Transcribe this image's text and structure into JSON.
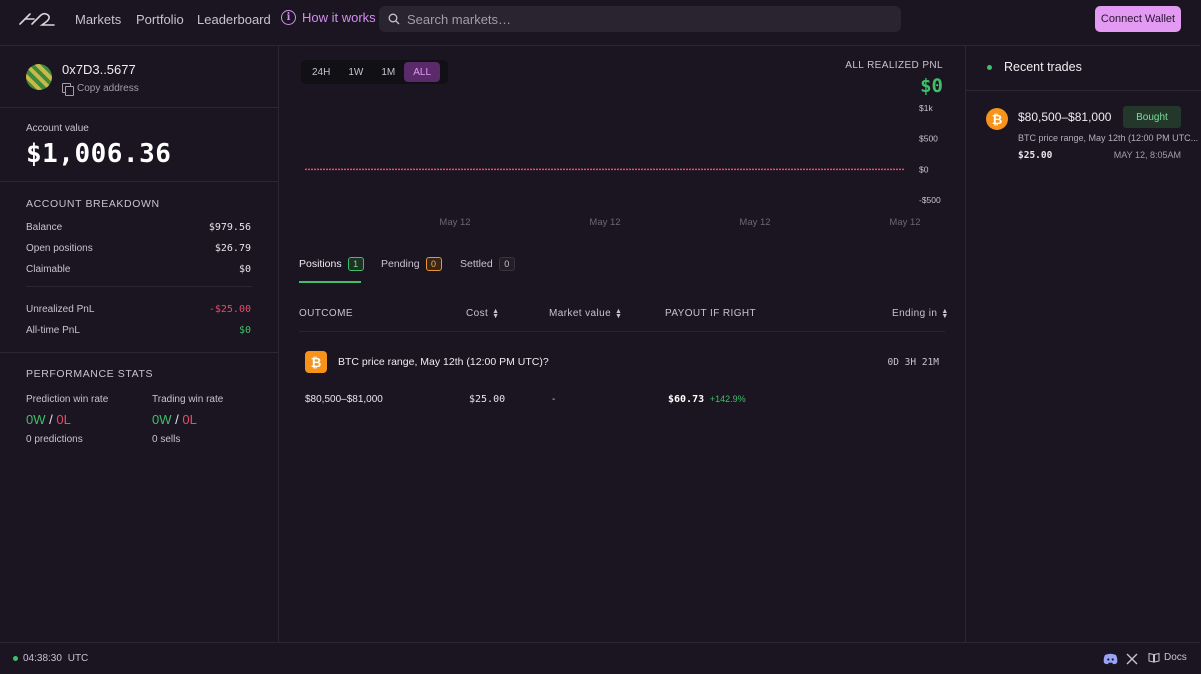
{
  "nav": {
    "links": [
      "Markets",
      "Portfolio",
      "Leaderboard"
    ],
    "how_it_works": "How it works",
    "search_placeholder": "Search markets…",
    "connect_wallet": "Connect Wallet"
  },
  "profile": {
    "address": "0x7D3..5677",
    "copy_label": "Copy address"
  },
  "account": {
    "label": "Account value",
    "value": "$1,006.36"
  },
  "breakdown": {
    "title": "ACCOUNT BREAKDOWN",
    "balance_label": "Balance",
    "balance_value": "$979.56",
    "open_label": "Open positions",
    "open_value": "$26.79",
    "claimable_label": "Claimable",
    "claimable_value": "$0",
    "unrealized_label": "Unrealized PnL",
    "unrealized_value": "-$25.00",
    "alltime_label": "All-time PnL",
    "alltime_value": "$0"
  },
  "performance": {
    "title": "PERFORMANCE STATS",
    "prediction_label": "Prediction win rate",
    "prediction_w": "0W",
    "prediction_sep": "/",
    "prediction_l": "0L",
    "prediction_sub": "0 predictions",
    "trading_label": "Trading win rate",
    "trading_w": "0W",
    "trading_sep": "/",
    "trading_l": "0L",
    "trading_sub": "0 sells"
  },
  "range_tabs": [
    "24H",
    "1W",
    "1M",
    "ALL"
  ],
  "range_active": "ALL",
  "pnl": {
    "label": "ALL REALIZED PNL",
    "value": "$0"
  },
  "chart_data": {
    "type": "line",
    "x": [
      "May 12",
      "May 12",
      "May 12",
      "May 12"
    ],
    "y_ticks": [
      "$1k",
      "$500",
      "$0",
      "-$500"
    ],
    "ylim": [
      -500,
      1000
    ],
    "series": [
      {
        "values": [
          0,
          0,
          0,
          0
        ]
      }
    ],
    "line_color": "#e94b6a",
    "grid": false
  },
  "positions_tabs": [
    {
      "label": "Positions",
      "count": "1"
    },
    {
      "label": "Pending",
      "count": "0"
    },
    {
      "label": "Settled",
      "count": "0"
    }
  ],
  "table": {
    "headers": {
      "outcome": "OUTCOME",
      "cost": "Cost",
      "market_value": "Market value",
      "payout": "PAYOUT IF RIGHT",
      "ending": "Ending in"
    },
    "rows": [
      {
        "market": "BTC price range, May 12th (12:00 PM UTC)?",
        "ending": "0D 3H 21M",
        "outcome": "$80,500–$81,000",
        "cost": "$25.00",
        "market_value": "-",
        "payout": "$60.73",
        "payout_change": "+142.9%"
      }
    ]
  },
  "recent_trades": {
    "title": "Recent trades",
    "items": [
      {
        "outcome": "$80,500–$81,000",
        "action": "Bought",
        "market": "BTC price range, May 12th (12:00 PM UTC...",
        "amount": "$25.00",
        "time": "MAY 12, 8:05AM"
      }
    ]
  },
  "footer": {
    "time": "04:38:30",
    "tz": "UTC",
    "docs": "Docs"
  },
  "colors": {
    "accent": "#e29af2",
    "positive": "#3fbf6a",
    "negative": "#e94b6a",
    "bitcoin": "#f7931a"
  }
}
